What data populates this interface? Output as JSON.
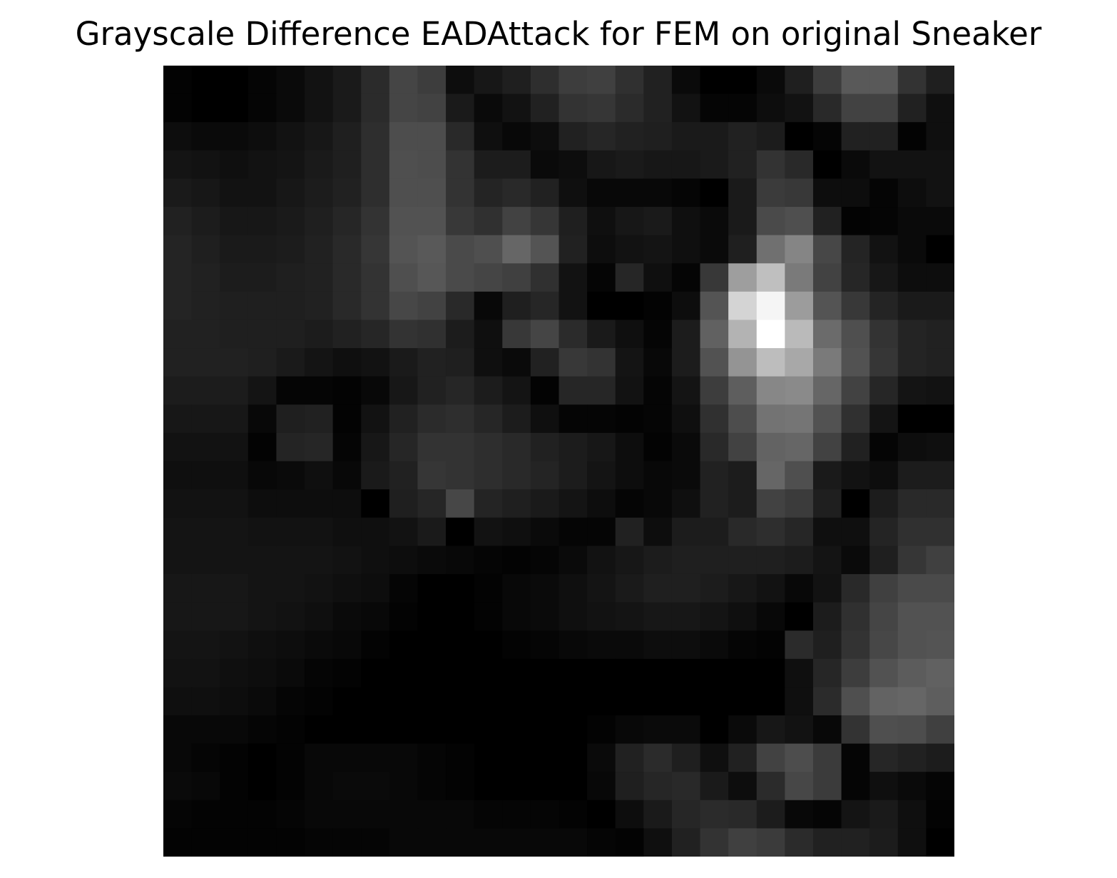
{
  "chart_data": {
    "type": "heatmap",
    "title": "Grayscale Difference EADAttack for FEM on original Sneaker",
    "colormap": "gray",
    "axes_visible": false,
    "grid": false,
    "value_range": [
      0,
      1
    ],
    "rows": 28,
    "cols": 28,
    "values": [
      [
        0.01,
        0.0,
        0.0,
        0.02,
        0.04,
        0.07,
        0.1,
        0.17,
        0.27,
        0.24,
        0.05,
        0.09,
        0.12,
        0.18,
        0.24,
        0.25,
        0.19,
        0.13,
        0.04,
        0.0,
        0.0,
        0.04,
        0.12,
        0.24,
        0.35,
        0.35,
        0.2,
        0.12
      ],
      [
        0.01,
        0.0,
        0.0,
        0.02,
        0.04,
        0.07,
        0.1,
        0.17,
        0.27,
        0.26,
        0.1,
        0.04,
        0.07,
        0.13,
        0.2,
        0.21,
        0.17,
        0.13,
        0.07,
        0.02,
        0.02,
        0.05,
        0.07,
        0.16,
        0.26,
        0.26,
        0.13,
        0.06
      ],
      [
        0.05,
        0.04,
        0.04,
        0.05,
        0.07,
        0.09,
        0.12,
        0.18,
        0.3,
        0.3,
        0.16,
        0.06,
        0.03,
        0.05,
        0.13,
        0.15,
        0.13,
        0.12,
        0.1,
        0.1,
        0.13,
        0.11,
        0.0,
        0.02,
        0.13,
        0.13,
        0.01,
        0.06
      ],
      [
        0.08,
        0.07,
        0.06,
        0.07,
        0.08,
        0.1,
        0.12,
        0.18,
        0.31,
        0.3,
        0.2,
        0.11,
        0.11,
        0.04,
        0.05,
        0.09,
        0.1,
        0.09,
        0.09,
        0.1,
        0.13,
        0.2,
        0.16,
        0.0,
        0.04,
        0.07,
        0.07,
        0.07
      ],
      [
        0.1,
        0.09,
        0.07,
        0.07,
        0.09,
        0.11,
        0.13,
        0.18,
        0.31,
        0.31,
        0.2,
        0.14,
        0.16,
        0.13,
        0.06,
        0.03,
        0.03,
        0.03,
        0.02,
        0.0,
        0.1,
        0.23,
        0.22,
        0.05,
        0.05,
        0.02,
        0.05,
        0.07
      ],
      [
        0.13,
        0.11,
        0.09,
        0.09,
        0.1,
        0.12,
        0.15,
        0.2,
        0.32,
        0.32,
        0.22,
        0.19,
        0.26,
        0.21,
        0.12,
        0.06,
        0.09,
        0.1,
        0.06,
        0.04,
        0.1,
        0.29,
        0.31,
        0.13,
        0.01,
        0.02,
        0.04,
        0.04
      ],
      [
        0.14,
        0.12,
        0.1,
        0.1,
        0.11,
        0.13,
        0.16,
        0.21,
        0.33,
        0.35,
        0.29,
        0.31,
        0.4,
        0.33,
        0.13,
        0.05,
        0.07,
        0.08,
        0.06,
        0.04,
        0.12,
        0.44,
        0.52,
        0.28,
        0.14,
        0.07,
        0.04,
        0.0
      ],
      [
        0.14,
        0.13,
        0.11,
        0.11,
        0.12,
        0.13,
        0.16,
        0.2,
        0.31,
        0.34,
        0.29,
        0.27,
        0.25,
        0.19,
        0.07,
        0.02,
        0.15,
        0.06,
        0.02,
        0.22,
        0.62,
        0.75,
        0.48,
        0.26,
        0.15,
        0.09,
        0.05,
        0.05
      ],
      [
        0.14,
        0.13,
        0.12,
        0.12,
        0.12,
        0.13,
        0.16,
        0.2,
        0.28,
        0.26,
        0.16,
        0.03,
        0.12,
        0.15,
        0.07,
        0.0,
        0.0,
        0.01,
        0.05,
        0.33,
        0.83,
        0.96,
        0.61,
        0.33,
        0.22,
        0.14,
        0.1,
        0.1
      ],
      [
        0.13,
        0.13,
        0.12,
        0.12,
        0.12,
        0.11,
        0.13,
        0.15,
        0.2,
        0.19,
        0.11,
        0.06,
        0.22,
        0.27,
        0.17,
        0.1,
        0.06,
        0.02,
        0.11,
        0.38,
        0.7,
        1.0,
        0.73,
        0.42,
        0.31,
        0.2,
        0.14,
        0.13
      ],
      [
        0.13,
        0.13,
        0.13,
        0.12,
        0.1,
        0.08,
        0.06,
        0.07,
        0.1,
        0.13,
        0.12,
        0.06,
        0.04,
        0.13,
        0.22,
        0.2,
        0.08,
        0.03,
        0.11,
        0.32,
        0.58,
        0.74,
        0.66,
        0.48,
        0.32,
        0.21,
        0.14,
        0.13
      ],
      [
        0.11,
        0.11,
        0.11,
        0.08,
        0.02,
        0.02,
        0.01,
        0.03,
        0.09,
        0.13,
        0.15,
        0.11,
        0.08,
        0.01,
        0.15,
        0.15,
        0.07,
        0.02,
        0.08,
        0.24,
        0.37,
        0.53,
        0.54,
        0.4,
        0.26,
        0.15,
        0.08,
        0.07
      ],
      [
        0.09,
        0.09,
        0.09,
        0.03,
        0.12,
        0.13,
        0.01,
        0.07,
        0.13,
        0.17,
        0.18,
        0.15,
        0.11,
        0.06,
        0.02,
        0.02,
        0.01,
        0.02,
        0.06,
        0.19,
        0.3,
        0.45,
        0.46,
        0.32,
        0.19,
        0.08,
        0.0,
        0.0
      ],
      [
        0.07,
        0.07,
        0.07,
        0.01,
        0.14,
        0.15,
        0.02,
        0.09,
        0.15,
        0.2,
        0.2,
        0.18,
        0.16,
        0.13,
        0.11,
        0.09,
        0.05,
        0.01,
        0.04,
        0.16,
        0.26,
        0.39,
        0.4,
        0.26,
        0.13,
        0.02,
        0.05,
        0.06
      ],
      [
        0.06,
        0.06,
        0.06,
        0.03,
        0.04,
        0.06,
        0.03,
        0.1,
        0.13,
        0.21,
        0.2,
        0.18,
        0.16,
        0.14,
        0.11,
        0.08,
        0.05,
        0.03,
        0.04,
        0.13,
        0.11,
        0.4,
        0.31,
        0.1,
        0.07,
        0.05,
        0.11,
        0.11
      ],
      [
        0.07,
        0.07,
        0.07,
        0.05,
        0.05,
        0.05,
        0.05,
        0.0,
        0.12,
        0.15,
        0.28,
        0.14,
        0.12,
        0.1,
        0.08,
        0.05,
        0.02,
        0.03,
        0.06,
        0.13,
        0.11,
        0.26,
        0.23,
        0.12,
        0.0,
        0.11,
        0.16,
        0.16
      ],
      [
        0.08,
        0.08,
        0.08,
        0.07,
        0.07,
        0.07,
        0.06,
        0.06,
        0.07,
        0.1,
        0.0,
        0.07,
        0.06,
        0.04,
        0.02,
        0.02,
        0.13,
        0.05,
        0.11,
        0.11,
        0.16,
        0.18,
        0.15,
        0.06,
        0.06,
        0.14,
        0.19,
        0.19
      ],
      [
        0.08,
        0.08,
        0.08,
        0.08,
        0.08,
        0.08,
        0.07,
        0.06,
        0.05,
        0.04,
        0.03,
        0.02,
        0.01,
        0.02,
        0.04,
        0.07,
        0.09,
        0.11,
        0.12,
        0.12,
        0.12,
        0.12,
        0.11,
        0.08,
        0.04,
        0.12,
        0.21,
        0.25
      ],
      [
        0.09,
        0.09,
        0.09,
        0.08,
        0.08,
        0.07,
        0.06,
        0.05,
        0.02,
        0.0,
        0.0,
        0.01,
        0.03,
        0.04,
        0.06,
        0.08,
        0.1,
        0.12,
        0.12,
        0.11,
        0.09,
        0.07,
        0.03,
        0.07,
        0.16,
        0.25,
        0.29,
        0.29
      ],
      [
        0.09,
        0.09,
        0.09,
        0.08,
        0.07,
        0.06,
        0.04,
        0.03,
        0.01,
        0.0,
        0.0,
        0.01,
        0.03,
        0.04,
        0.06,
        0.07,
        0.08,
        0.09,
        0.09,
        0.08,
        0.06,
        0.03,
        0.0,
        0.11,
        0.19,
        0.27,
        0.32,
        0.32
      ],
      [
        0.08,
        0.08,
        0.07,
        0.06,
        0.05,
        0.04,
        0.03,
        0.01,
        0.0,
        0.0,
        0.0,
        0.0,
        0.01,
        0.02,
        0.03,
        0.04,
        0.04,
        0.05,
        0.05,
        0.04,
        0.02,
        0.01,
        0.17,
        0.12,
        0.2,
        0.28,
        0.32,
        0.33
      ],
      [
        0.07,
        0.07,
        0.06,
        0.05,
        0.04,
        0.02,
        0.01,
        0.0,
        0.0,
        0.0,
        0.0,
        0.0,
        0.0,
        0.0,
        0.0,
        0.0,
        0.0,
        0.0,
        0.0,
        0.0,
        0.0,
        0.0,
        0.06,
        0.15,
        0.24,
        0.32,
        0.36,
        0.38
      ],
      [
        0.06,
        0.06,
        0.05,
        0.04,
        0.02,
        0.01,
        0.0,
        0.0,
        0.0,
        0.0,
        0.0,
        0.0,
        0.0,
        0.0,
        0.0,
        0.0,
        0.0,
        0.0,
        0.0,
        0.0,
        0.0,
        0.0,
        0.06,
        0.17,
        0.31,
        0.39,
        0.4,
        0.37
      ],
      [
        0.03,
        0.03,
        0.03,
        0.02,
        0.01,
        0.0,
        0.0,
        0.0,
        0.0,
        0.0,
        0.0,
        0.0,
        0.0,
        0.0,
        0.0,
        0.01,
        0.03,
        0.04,
        0.04,
        0.0,
        0.04,
        0.09,
        0.07,
        0.03,
        0.2,
        0.31,
        0.3,
        0.25
      ],
      [
        0.03,
        0.02,
        0.01,
        0.0,
        0.01,
        0.03,
        0.03,
        0.03,
        0.03,
        0.02,
        0.01,
        0.0,
        0.0,
        0.0,
        0.0,
        0.04,
        0.13,
        0.17,
        0.12,
        0.06,
        0.13,
        0.26,
        0.3,
        0.23,
        0.02,
        0.15,
        0.13,
        0.11
      ],
      [
        0.04,
        0.03,
        0.01,
        0.0,
        0.01,
        0.03,
        0.04,
        0.04,
        0.03,
        0.02,
        0.01,
        0.0,
        0.0,
        0.0,
        0.0,
        0.03,
        0.12,
        0.15,
        0.16,
        0.1,
        0.05,
        0.17,
        0.28,
        0.23,
        0.02,
        0.06,
        0.04,
        0.02
      ],
      [
        0.02,
        0.01,
        0.01,
        0.01,
        0.02,
        0.03,
        0.03,
        0.03,
        0.03,
        0.03,
        0.03,
        0.02,
        0.02,
        0.02,
        0.01,
        0.0,
        0.05,
        0.1,
        0.15,
        0.17,
        0.16,
        0.11,
        0.03,
        0.02,
        0.08,
        0.1,
        0.06,
        0.01
      ],
      [
        0.01,
        0.01,
        0.01,
        0.01,
        0.01,
        0.02,
        0.02,
        0.02,
        0.03,
        0.03,
        0.03,
        0.03,
        0.03,
        0.03,
        0.03,
        0.02,
        0.01,
        0.06,
        0.13,
        0.2,
        0.25,
        0.23,
        0.17,
        0.13,
        0.13,
        0.11,
        0.06,
        0.0
      ]
    ]
  }
}
